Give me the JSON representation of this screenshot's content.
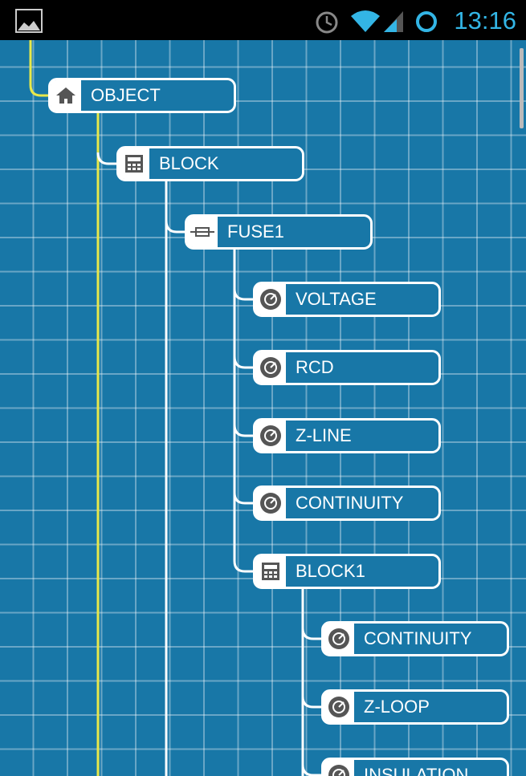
{
  "status_bar": {
    "time": "13:16"
  },
  "tree": {
    "label": "OBJECT",
    "children": [
      {
        "label": "BLOCK",
        "children": [
          {
            "label": "FUSE1",
            "children": [
              {
                "label": "VOLTAGE"
              },
              {
                "label": "RCD"
              },
              {
                "label": "Z-LINE"
              },
              {
                "label": "CONTINUITY"
              },
              {
                "label": "BLOCK1",
                "children": [
                  {
                    "label": "CONTINUITY"
                  },
                  {
                    "label": "Z-LOOP"
                  },
                  {
                    "label": "INSULATION"
                  }
                ]
              }
            ]
          }
        ]
      }
    ]
  }
}
